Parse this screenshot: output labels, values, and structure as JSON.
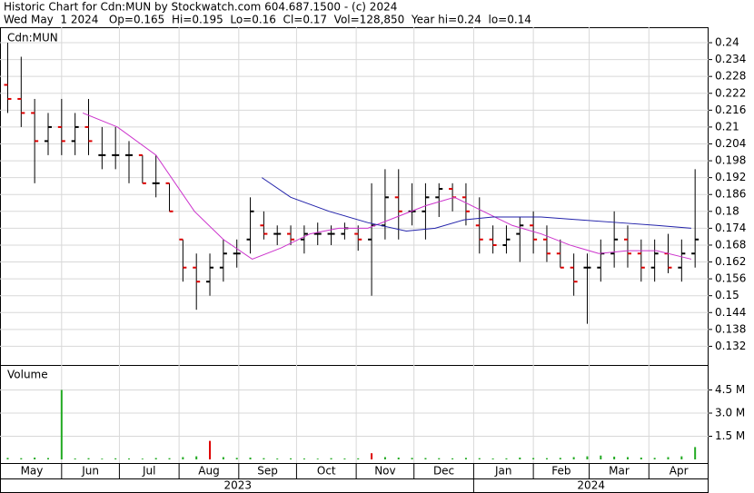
{
  "chart_data": [
    {
      "type": "ohlc",
      "title": "Historic Chart for Cdn:MUN by Stockwatch.com 604.687.1500 - (c) 2024",
      "subtitle": "Wed May  1 2024   Op=0.165  Hi=0.195  Lo=0.16  Cl=0.17  Vol=128,850  Year hi=0.24  lo=0.14",
      "legend": "Cdn:MUN",
      "x": [
        3,
        10,
        17,
        24,
        31,
        38,
        45,
        52,
        59,
        66,
        73,
        80,
        87,
        94,
        101,
        108,
        115,
        122,
        129,
        136,
        143,
        150,
        157,
        164,
        171,
        178,
        185,
        192,
        199,
        206,
        213,
        220,
        227,
        234,
        241,
        248,
        255,
        262,
        269,
        276,
        283,
        290,
        297,
        304,
        311,
        318,
        325,
        332,
        339,
        346,
        353,
        360
      ],
      "open": [
        0.225,
        0.22,
        0.215,
        0.205,
        0.21,
        0.205,
        0.21,
        0.2,
        0.2,
        0.2,
        0.2,
        0.19,
        0.19,
        0.17,
        0.16,
        0.155,
        0.16,
        0.165,
        0.17,
        0.175,
        0.172,
        0.172,
        0.17,
        0.172,
        0.172,
        0.172,
        0.172,
        0.17,
        0.175,
        0.185,
        0.18,
        0.18,
        0.185,
        0.188,
        0.185,
        0.175,
        0.17,
        0.168,
        0.172,
        0.175,
        0.17,
        0.165,
        0.16,
        0.16,
        0.16,
        0.165,
        0.17,
        0.165,
        0.16,
        0.165,
        0.16,
        0.165
      ],
      "high": [
        0.24,
        0.235,
        0.22,
        0.215,
        0.22,
        0.215,
        0.22,
        0.21,
        0.21,
        0.205,
        0.2,
        0.2,
        0.19,
        0.17,
        0.165,
        0.165,
        0.17,
        0.17,
        0.185,
        0.18,
        0.175,
        0.175,
        0.175,
        0.176,
        0.175,
        0.176,
        0.175,
        0.19,
        0.195,
        0.195,
        0.19,
        0.19,
        0.19,
        0.19,
        0.19,
        0.185,
        0.175,
        0.175,
        0.178,
        0.18,
        0.175,
        0.17,
        0.165,
        0.165,
        0.17,
        0.18,
        0.175,
        0.17,
        0.17,
        0.172,
        0.17,
        0.195
      ],
      "low": [
        0.215,
        0.21,
        0.19,
        0.2,
        0.2,
        0.2,
        0.2,
        0.195,
        0.195,
        0.19,
        0.19,
        0.185,
        0.18,
        0.155,
        0.145,
        0.15,
        0.155,
        0.16,
        0.165,
        0.17,
        0.168,
        0.168,
        0.165,
        0.168,
        0.168,
        0.17,
        0.166,
        0.15,
        0.17,
        0.17,
        0.175,
        0.17,
        0.178,
        0.18,
        0.175,
        0.165,
        0.165,
        0.165,
        0.162,
        0.165,
        0.162,
        0.16,
        0.15,
        0.14,
        0.155,
        0.16,
        0.16,
        0.155,
        0.155,
        0.158,
        0.155,
        0.16
      ],
      "close": [
        0.22,
        0.215,
        0.205,
        0.21,
        0.205,
        0.21,
        0.205,
        0.2,
        0.2,
        0.2,
        0.19,
        0.19,
        0.18,
        0.16,
        0.155,
        0.16,
        0.165,
        0.165,
        0.18,
        0.172,
        0.172,
        0.17,
        0.172,
        0.172,
        0.172,
        0.174,
        0.17,
        0.175,
        0.185,
        0.18,
        0.18,
        0.185,
        0.188,
        0.185,
        0.18,
        0.17,
        0.168,
        0.17,
        0.175,
        0.17,
        0.165,
        0.16,
        0.155,
        0.16,
        0.165,
        0.17,
        0.165,
        0.16,
        0.165,
        0.16,
        0.165,
        0.17
      ],
      "lines": [
        {
          "color": "#cc33cc",
          "x": [
            42,
            60,
            80,
            100,
            115,
            130,
            145,
            160,
            175,
            190,
            205,
            220,
            235,
            250,
            265,
            280,
            295,
            310,
            325,
            340,
            358
          ],
          "values": [
            0.215,
            0.21,
            0.2,
            0.18,
            0.17,
            0.163,
            0.167,
            0.172,
            0.174,
            0.174,
            0.178,
            0.182,
            0.185,
            0.18,
            0.175,
            0.172,
            0.168,
            0.165,
            0.166,
            0.166,
            0.163
          ]
        },
        {
          "color": "#2222aa",
          "x": [
            135,
            150,
            170,
            190,
            210,
            225,
            240,
            255,
            280,
            300,
            320,
            340,
            358
          ],
          "values": [
            0.192,
            0.185,
            0.18,
            0.176,
            0.173,
            0.174,
            0.177,
            0.178,
            0.178,
            0.177,
            0.176,
            0.175,
            0.174
          ]
        }
      ],
      "xlim": [
        -1,
        367
      ],
      "ylim": [
        0.126,
        0.2455
      ],
      "yticks": [
        0.24,
        0.234,
        0.228,
        0.222,
        0.216,
        0.21,
        0.204,
        0.198,
        0.192,
        0.186,
        0.18,
        0.174,
        0.168,
        0.162,
        0.156,
        0.15,
        0.144,
        0.138,
        0.132
      ],
      "xticks": [
        {
          "value": 0,
          "label": "May"
        },
        {
          "value": 31,
          "label": "Jun"
        },
        {
          "value": 61,
          "label": "Jul"
        },
        {
          "value": 92,
          "label": "Aug"
        },
        {
          "value": 123,
          "label": "Sep"
        },
        {
          "value": 153,
          "label": "Oct"
        },
        {
          "value": 184,
          "label": "Nov"
        },
        {
          "value": 214,
          "label": "Dec"
        },
        {
          "value": 245,
          "label": "Jan"
        },
        {
          "value": 276,
          "label": "Feb"
        },
        {
          "value": 305,
          "label": "Mar"
        },
        {
          "value": 336,
          "label": "Apr"
        }
      ],
      "years": [
        {
          "value": 0,
          "label": "2023"
        },
        {
          "value": 245,
          "label": "2024"
        }
      ],
      "grid": true
    },
    {
      "type": "volume",
      "legend": "Volume",
      "color": "#22aa22",
      "x": [
        3,
        10,
        17,
        24,
        31,
        38,
        45,
        52,
        59,
        66,
        73,
        80,
        87,
        94,
        101,
        108,
        115,
        122,
        129,
        136,
        143,
        150,
        157,
        164,
        171,
        178,
        185,
        192,
        199,
        206,
        213,
        220,
        227,
        234,
        241,
        248,
        255,
        262,
        269,
        276,
        283,
        290,
        297,
        304,
        311,
        318,
        325,
        332,
        339,
        346,
        353,
        360
      ],
      "values": [
        100000,
        80000,
        120000,
        90000,
        4500000,
        60000,
        80000,
        50000,
        70000,
        60000,
        50000,
        90000,
        80000,
        150000,
        200000,
        1200000,
        150000,
        100000,
        120000,
        80000,
        60000,
        70000,
        60000,
        50000,
        80000,
        60000,
        70000,
        400000,
        150000,
        120000,
        100000,
        90000,
        80000,
        70000,
        100000,
        80000,
        60000,
        70000,
        120000,
        90000,
        80000,
        100000,
        150000,
        200000,
        250000,
        180000,
        150000,
        120000,
        100000,
        150000,
        200000,
        800000
      ],
      "xlim": [
        -1,
        367
      ],
      "ylim": [
        0,
        6000000
      ],
      "yticks": [
        {
          "value": 4500000,
          "label": "4.5 M"
        },
        {
          "value": 3000000,
          "label": "3.0 M"
        },
        {
          "value": 1500000,
          "label": "1.5 M"
        }
      ],
      "grid": true
    }
  ]
}
